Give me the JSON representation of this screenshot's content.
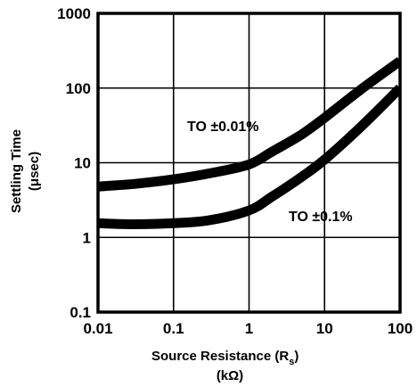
{
  "chart_data": {
    "type": "line",
    "xscale": "log",
    "yscale": "log",
    "xlim": [
      0.01,
      100
    ],
    "ylim": [
      0.1,
      1000
    ],
    "grid": true,
    "x_ticks": [
      "0.01",
      "0.1",
      "1",
      "10",
      "100"
    ],
    "y_ticks": [
      "0.1",
      "1",
      "10",
      "100",
      "1000"
    ],
    "xlabel": "Source Resistance (R",
    "xlabel_sub": "s",
    "xlabel_tail": ")",
    "xlabel_line2": "(kΩ)",
    "ylabel": "Settling Time",
    "ylabel_line2": "(μsec)",
    "series": [
      {
        "name": "TO ±0.01%",
        "x": [
          0.01,
          0.03,
          0.1,
          0.3,
          1,
          2,
          5,
          10,
          30,
          100
        ],
        "y": [
          4.8,
          5.2,
          6.0,
          7.2,
          9.5,
          14,
          24,
          40,
          95,
          230
        ]
      },
      {
        "name": "TO ±0.1%",
        "x": [
          0.01,
          0.03,
          0.1,
          0.3,
          1,
          2,
          5,
          10,
          30,
          100
        ],
        "y": [
          1.55,
          1.5,
          1.55,
          1.7,
          2.3,
          3.5,
          6.5,
          11,
          30,
          100
        ]
      }
    ]
  }
}
